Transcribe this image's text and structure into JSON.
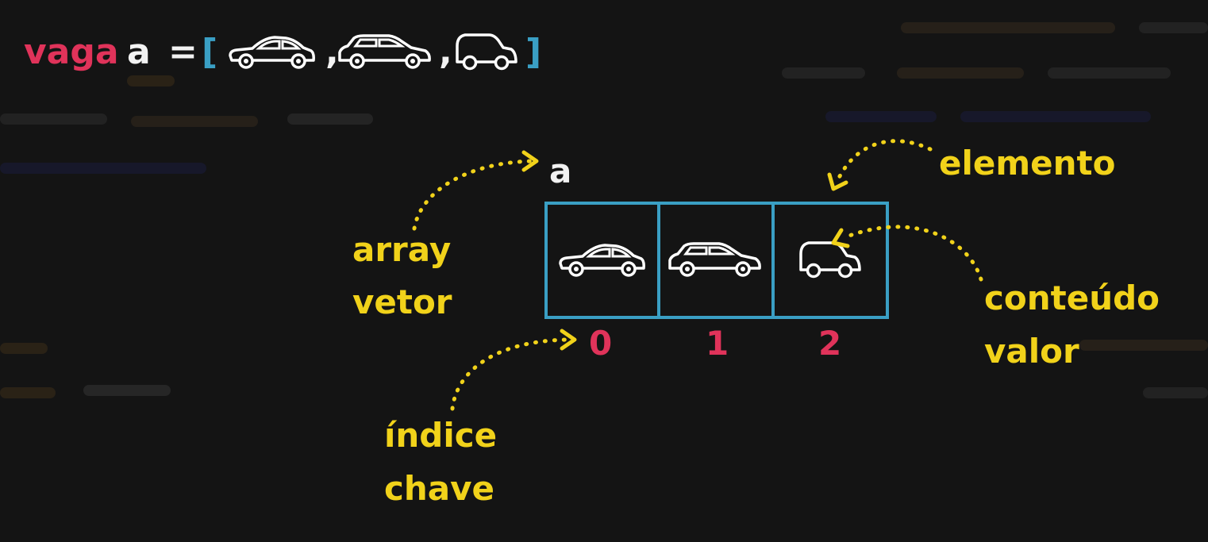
{
  "code_line": {
    "keyword": "vaga",
    "variable": "a",
    "equals": "=",
    "open_bracket": "[",
    "comma": ",",
    "close_bracket": "]",
    "items": [
      "sedan-car",
      "hatchback-car",
      "small-car"
    ]
  },
  "array_diagram": {
    "name": "a",
    "cells": [
      {
        "index": "0",
        "content": "sedan-car"
      },
      {
        "index": "1",
        "content": "hatchback-car"
      },
      {
        "index": "2",
        "content": "small-car"
      }
    ]
  },
  "annotations": {
    "array_line1": "array",
    "array_line2": "vetor",
    "element": "elemento",
    "content_line1": "conteúdo",
    "content_line2": "valor",
    "index_line1": "índice",
    "index_line2": "chave"
  },
  "colors": {
    "background": "#141414",
    "keyword": "#e0335a",
    "variable": "#f2f2f2",
    "bracket": "#3a9fc4",
    "annotation": "#f1d21a",
    "index": "#e0335a",
    "cell_border": "#3a9fc4"
  }
}
